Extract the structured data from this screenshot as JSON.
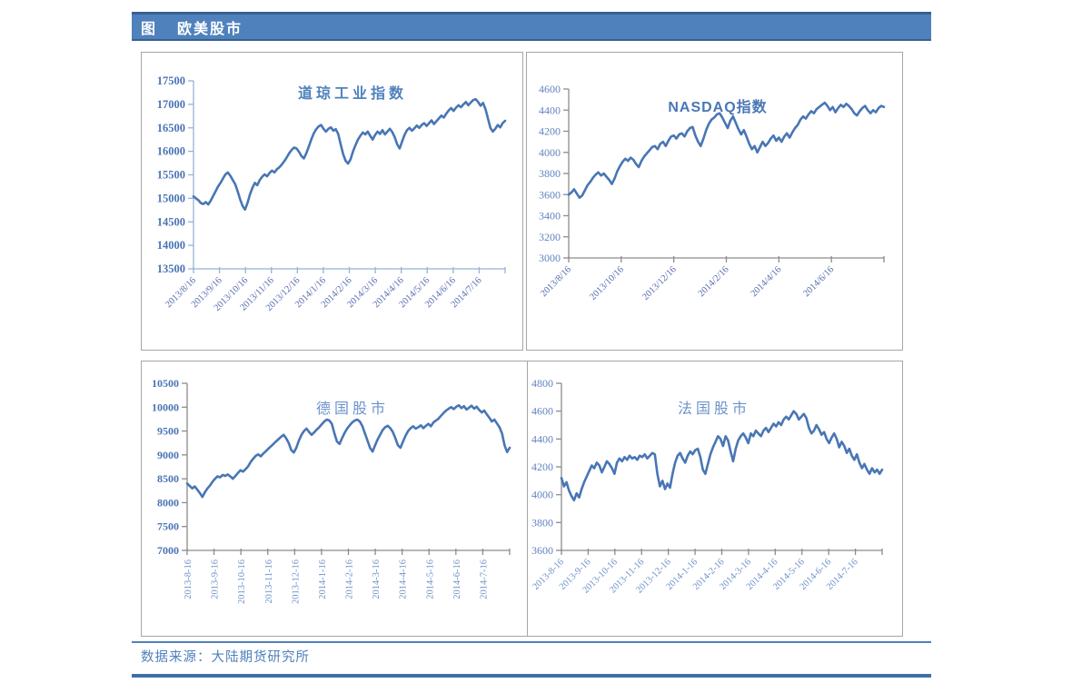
{
  "header": {
    "prefix": "图",
    "title": "欧美股市"
  },
  "footer": {
    "source_label": "数据来源：大陆期货研究所"
  },
  "colors": {
    "accent": "#4f81bd",
    "header_bg": "#4f81bd",
    "header_edge": "#36618f",
    "line": "#4876b4",
    "panel_border": "#a6a6a6",
    "axis_blue": "#95b3d7",
    "axis_gray": "#8c8c8c"
  },
  "chart_data": [
    {
      "type": "line",
      "title": "道琼工业指数",
      "ylabel": "",
      "xlabel": "",
      "grid": false,
      "legend": "none",
      "ylim": [
        13500,
        17500
      ],
      "yticks": [
        17500,
        17000,
        16500,
        16000,
        15500,
        15000,
        14500,
        14000,
        13500
      ],
      "x_labels": [
        "2013/8/16",
        "2013/9/16",
        "2013/10/16",
        "2013/11/16",
        "2013/12/16",
        "2014/1/16",
        "2014/2/16",
        "2014/3/16",
        "2014/4/16",
        "2014/5/16",
        "2014/6/16",
        "2014/7/16"
      ],
      "series": [
        {
          "name": "道琼工业指数",
          "values": [
            15040,
            15000,
            14960,
            14900,
            14880,
            14920,
            14870,
            14950,
            15050,
            15150,
            15250,
            15330,
            15420,
            15510,
            15550,
            15480,
            15390,
            15300,
            15150,
            14980,
            14840,
            14760,
            14900,
            15080,
            15220,
            15330,
            15280,
            15390,
            15460,
            15510,
            15470,
            15540,
            15590,
            15550,
            15620,
            15660,
            15720,
            15790,
            15870,
            15960,
            16030,
            16080,
            16060,
            15990,
            15900,
            15850,
            15960,
            16100,
            16250,
            16380,
            16470,
            16530,
            16560,
            16480,
            16420,
            16480,
            16510,
            16440,
            16470,
            16370,
            16150,
            15940,
            15800,
            15740,
            15830,
            16000,
            16130,
            16250,
            16330,
            16400,
            16360,
            16420,
            16330,
            16250,
            16350,
            16420,
            16370,
            16450,
            16360,
            16420,
            16480,
            16410,
            16300,
            16150,
            16060,
            16210,
            16350,
            16450,
            16500,
            16440,
            16490,
            16550,
            16500,
            16560,
            16600,
            16540,
            16600,
            16660,
            16580,
            16640,
            16700,
            16760,
            16720,
            16800,
            16870,
            16920,
            16860,
            16930,
            16980,
            16940,
            17000,
            17050,
            16980,
            17040,
            17090,
            17110,
            17050,
            16970,
            17030,
            16900,
            16700,
            16500,
            16420,
            16480,
            16560,
            16510,
            16600,
            16650
          ]
        }
      ]
    },
    {
      "type": "line",
      "title": "NASDAQ指数",
      "ylabel": "",
      "xlabel": "",
      "grid": false,
      "legend": "none",
      "ylim": [
        3000,
        4600
      ],
      "yticks": [
        4600,
        4400,
        4200,
        4000,
        3800,
        3600,
        3400,
        3200,
        3000
      ],
      "x_labels": [
        "2013/8/16",
        "2013/10/16",
        "2013/12/16",
        "2014/2/16",
        "2014/4/16",
        "2014/6/16"
      ],
      "series": [
        {
          "name": "NASDAQ指数",
          "values": [
            3600,
            3620,
            3650,
            3610,
            3570,
            3590,
            3640,
            3690,
            3720,
            3760,
            3790,
            3810,
            3780,
            3800,
            3770,
            3740,
            3700,
            3750,
            3820,
            3870,
            3910,
            3940,
            3920,
            3950,
            3930,
            3890,
            3860,
            3920,
            3960,
            3990,
            4020,
            4050,
            4060,
            4030,
            4080,
            4100,
            4060,
            4110,
            4150,
            4160,
            4130,
            4170,
            4180,
            4150,
            4200,
            4230,
            4240,
            4160,
            4100,
            4060,
            4130,
            4210,
            4270,
            4310,
            4330,
            4360,
            4370,
            4330,
            4280,
            4230,
            4300,
            4340,
            4280,
            4220,
            4170,
            4210,
            4150,
            4080,
            4030,
            4060,
            4000,
            4050,
            4100,
            4060,
            4090,
            4130,
            4160,
            4110,
            4140,
            4100,
            4150,
            4180,
            4140,
            4190,
            4230,
            4260,
            4310,
            4340,
            4320,
            4360,
            4390,
            4370,
            4410,
            4430,
            4450,
            4470,
            4440,
            4400,
            4430,
            4380,
            4420,
            4450,
            4430,
            4460,
            4440,
            4410,
            4370,
            4350,
            4390,
            4420,
            4440,
            4400,
            4370,
            4400,
            4380,
            4420,
            4440,
            4430
          ]
        }
      ]
    },
    {
      "type": "line",
      "title": "德国股市",
      "ylabel": "",
      "xlabel": "",
      "grid": false,
      "legend": "none",
      "ylim": [
        7000,
        10500
      ],
      "yticks": [
        10500,
        10000,
        9500,
        9000,
        8500,
        8000,
        7500,
        7000
      ],
      "x_labels": [
        "2013-8-16",
        "2013-9-16",
        "2013-10-16",
        "2013-11-16",
        "2013-12-16",
        "2014-1-16",
        "2014-2-16",
        "2014-3-16",
        "2014-4-16",
        "2014-5-16",
        "2014-6-16",
        "2014-7-16"
      ],
      "series": [
        {
          "name": "德国股市",
          "values": [
            8400,
            8350,
            8300,
            8340,
            8270,
            8200,
            8120,
            8220,
            8300,
            8360,
            8440,
            8500,
            8550,
            8530,
            8580,
            8560,
            8590,
            8550,
            8500,
            8560,
            8620,
            8680,
            8650,
            8700,
            8760,
            8850,
            8920,
            8980,
            9010,
            8970,
            9030,
            9080,
            9130,
            9180,
            9230,
            9280,
            9330,
            9380,
            9420,
            9350,
            9250,
            9100,
            9050,
            9150,
            9300,
            9420,
            9500,
            9550,
            9480,
            9420,
            9470,
            9530,
            9580,
            9640,
            9700,
            9740,
            9720,
            9650,
            9450,
            9280,
            9230,
            9350,
            9460,
            9550,
            9620,
            9680,
            9720,
            9740,
            9700,
            9600,
            9450,
            9300,
            9150,
            9070,
            9200,
            9320,
            9420,
            9520,
            9580,
            9610,
            9560,
            9480,
            9350,
            9200,
            9150,
            9280,
            9400,
            9500,
            9560,
            9600,
            9550,
            9580,
            9620,
            9560,
            9610,
            9650,
            9600,
            9680,
            9720,
            9760,
            9820,
            9880,
            9930,
            9970,
            10000,
            9960,
            10010,
            10040,
            9980,
            10020,
            9950,
            9990,
            10030,
            9970,
            10010,
            9940,
            9890,
            9930,
            9850,
            9780,
            9700,
            9740,
            9660,
            9580,
            9450,
            9200,
            9060,
            9150
          ]
        }
      ]
    },
    {
      "type": "line",
      "title": "法国股市",
      "ylabel": "",
      "xlabel": "",
      "grid": false,
      "legend": "none",
      "ylim": [
        3600,
        4800
      ],
      "yticks": [
        4800,
        4600,
        4400,
        4200,
        4000,
        3800,
        3600
      ],
      "x_labels": [
        "2013-8-16",
        "2013-9-16",
        "2013-10-16",
        "2013-11-16",
        "2013-12-16",
        "2014-1-16",
        "2014-2-16",
        "2014-3-16",
        "2014-4-16",
        "2014-5-16",
        "2014-6-16",
        "2014-7-16"
      ],
      "series": [
        {
          "name": "法国股市",
          "values": [
            4120,
            4060,
            4090,
            4030,
            3990,
            3960,
            4010,
            3980,
            4040,
            4090,
            4130,
            4170,
            4210,
            4190,
            4230,
            4210,
            4160,
            4200,
            4240,
            4220,
            4190,
            4150,
            4230,
            4260,
            4240,
            4270,
            4250,
            4280,
            4260,
            4270,
            4250,
            4280,
            4270,
            4290,
            4260,
            4280,
            4300,
            4290,
            4150,
            4060,
            4100,
            4040,
            4080,
            4050,
            4150,
            4230,
            4280,
            4300,
            4260,
            4230,
            4280,
            4310,
            4290,
            4320,
            4330,
            4270,
            4180,
            4150,
            4220,
            4290,
            4340,
            4380,
            4420,
            4400,
            4350,
            4420,
            4390,
            4310,
            4240,
            4330,
            4390,
            4420,
            4440,
            4410,
            4370,
            4440,
            4420,
            4460,
            4440,
            4420,
            4460,
            4480,
            4450,
            4480,
            4510,
            4490,
            4520,
            4500,
            4540,
            4560,
            4540,
            4570,
            4600,
            4580,
            4540,
            4560,
            4580,
            4550,
            4480,
            4440,
            4460,
            4500,
            4470,
            4430,
            4450,
            4400,
            4370,
            4410,
            4440,
            4400,
            4340,
            4380,
            4350,
            4300,
            4330,
            4280,
            4250,
            4290,
            4230,
            4190,
            4220,
            4180,
            4150,
            4190,
            4160,
            4180,
            4150,
            4180
          ]
        }
      ]
    }
  ]
}
